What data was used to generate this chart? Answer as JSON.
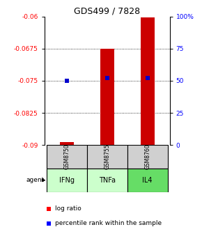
{
  "title": "GDS499 / 7828",
  "samples": [
    "GSM8750",
    "GSM8755",
    "GSM8760"
  ],
  "agents": [
    "IFNg",
    "TNFa",
    "IL4"
  ],
  "bar_values": [
    -0.0893,
    -0.0675,
    -0.0603
  ],
  "bar_bottom": -0.09,
  "percentile_values": [
    50,
    52,
    52
  ],
  "ylim_left": [
    -0.09,
    -0.06
  ],
  "ylim_right": [
    0,
    100
  ],
  "yticks_left": [
    -0.09,
    -0.0825,
    -0.075,
    -0.0675,
    -0.06
  ],
  "ytick_labels_left": [
    "-0.09",
    "-0.0825",
    "-0.075",
    "-0.0675",
    "-0.06"
  ],
  "yticks_right": [
    0,
    25,
    50,
    75,
    100
  ],
  "ytick_labels_right": [
    "0",
    "25",
    "50",
    "75",
    "100%"
  ],
  "bar_color": "#cc0000",
  "percentile_color": "#0000cc",
  "grid_yticks": [
    -0.0825,
    -0.075,
    -0.0675
  ],
  "sample_color": "#d0d0d0",
  "agent_colors": [
    "#ccffcc",
    "#ccffcc",
    "#66dd66"
  ],
  "bar_width": 0.35
}
